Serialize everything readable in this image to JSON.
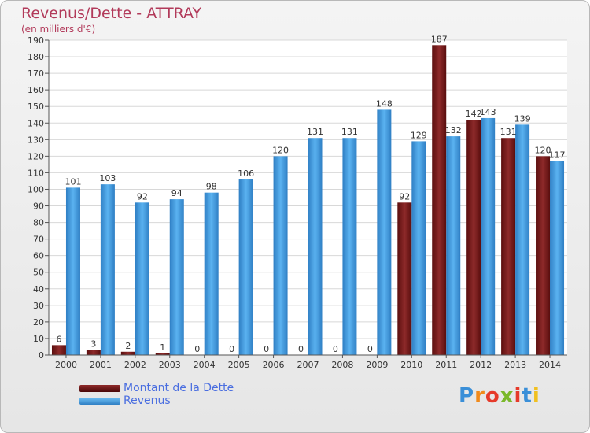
{
  "chart_data": {
    "type": "bar",
    "title": "Revenus/Dette - ATTRAY",
    "subtitle": "(en milliers d'€)",
    "categories": [
      "2000",
      "2001",
      "2002",
      "2003",
      "2004",
      "2005",
      "2006",
      "2007",
      "2008",
      "2009",
      "2010",
      "2011",
      "2012",
      "2013",
      "2014"
    ],
    "series": [
      {
        "name": "Montant de la Dette",
        "color": "#7a1a1a",
        "values": [
          6,
          3,
          2,
          1,
          0,
          0,
          0,
          0,
          0,
          0,
          92,
          187,
          142,
          131,
          120
        ]
      },
      {
        "name": "Revenus",
        "color": "#4aa3e8",
        "values": [
          101,
          103,
          92,
          94,
          98,
          106,
          120,
          131,
          131,
          148,
          129,
          132,
          143,
          139,
          117
        ]
      }
    ],
    "ylim": [
      0,
      190
    ],
    "yticks": [
      0,
      10,
      20,
      30,
      40,
      50,
      60,
      70,
      80,
      90,
      100,
      110,
      120,
      130,
      140,
      150,
      160,
      170,
      180,
      190
    ],
    "grid": true,
    "legend_position": "bottom-left"
  },
  "logo": {
    "letters": [
      "P",
      "r",
      "o",
      "x",
      "i",
      "t",
      "i"
    ],
    "colors": [
      "#3a8fd8",
      "#f08a1c",
      "#e63a2a",
      "#7ab82a",
      "#e63a2a",
      "#3a8fd8",
      "#f0c020"
    ]
  }
}
